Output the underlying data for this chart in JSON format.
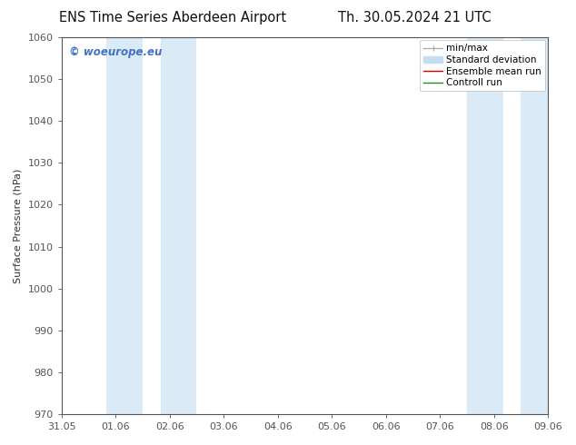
{
  "title_left": "ENS Time Series Aberdeen Airport",
  "title_right": "Th. 30.05.2024 21 UTC",
  "ylabel": "Surface Pressure (hPa)",
  "ylim": [
    970,
    1060
  ],
  "yticks": [
    970,
    980,
    990,
    1000,
    1010,
    1020,
    1030,
    1040,
    1050,
    1060
  ],
  "xtick_labels": [
    "31.05",
    "01.06",
    "02.06",
    "03.06",
    "04.06",
    "05.06",
    "06.06",
    "07.06",
    "08.06",
    "09.06"
  ],
  "xmin": 0.0,
  "xmax": 9.0,
  "shaded_bands": [
    {
      "x_start": 0.83,
      "x_end": 1.5
    },
    {
      "x_start": 1.83,
      "x_end": 2.5
    },
    {
      "x_start": 7.5,
      "x_end": 8.17
    },
    {
      "x_start": 8.5,
      "x_end": 9.0
    }
  ],
  "band_color": "#daeaf7",
  "watermark_text": "© woeurope.eu",
  "watermark_color": "#4472c4",
  "background_color": "#ffffff",
  "title_fontsize": 10.5,
  "axis_label_fontsize": 8,
  "tick_fontsize": 8,
  "watermark_fontsize": 8.5,
  "legend_fontsize": 7.5,
  "spine_color": "#555555",
  "tick_color": "#555555"
}
